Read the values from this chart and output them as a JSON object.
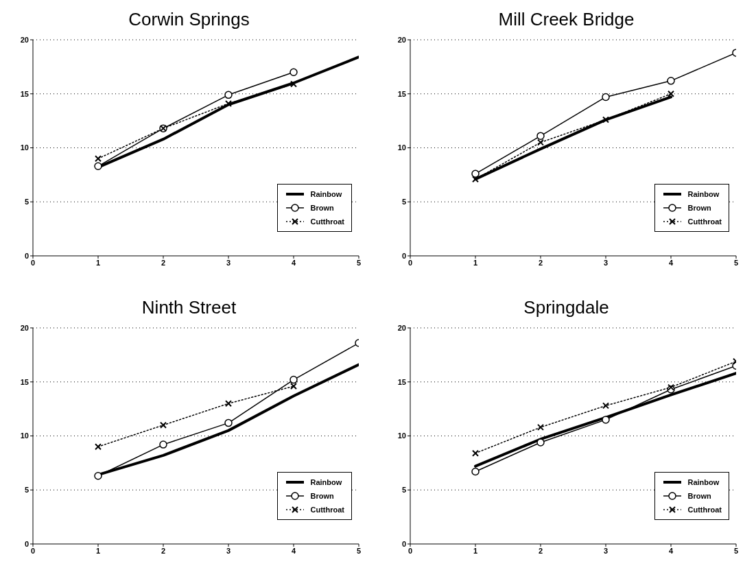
{
  "chart_data": [
    {
      "type": "line",
      "title": "Corwin Springs",
      "x": [
        1,
        2,
        3,
        4,
        5
      ],
      "xlim": [
        0,
        5
      ],
      "xticks": [
        0,
        1,
        2,
        3,
        4,
        5
      ],
      "ylim": [
        0,
        20
      ],
      "yticks": [
        0,
        5,
        10,
        15,
        20
      ],
      "grid": "y",
      "legend": "bottom right",
      "series": [
        {
          "name": "Rainbow",
          "color": "#000000",
          "line_style": "solid",
          "values": [
            8.2,
            10.8,
            14.0,
            16.0,
            18.4
          ]
        },
        {
          "name": "Brown",
          "color": "#000000",
          "marker": "circle",
          "line_style": "solid",
          "values": [
            8.3,
            11.8,
            14.9,
            17.0,
            null
          ]
        },
        {
          "name": "Cutthroat",
          "color": "#000000",
          "marker": "cross",
          "line_style": "dotted",
          "values": [
            9.0,
            11.8,
            14.1,
            15.9,
            null
          ]
        }
      ]
    },
    {
      "type": "line",
      "title": "Mill Creek Bridge",
      "x": [
        1,
        2,
        3,
        4,
        5
      ],
      "xlim": [
        0,
        5
      ],
      "xticks": [
        0,
        1,
        2,
        3,
        4,
        5
      ],
      "ylim": [
        0,
        20
      ],
      "yticks": [
        0,
        5,
        10,
        15,
        20
      ],
      "grid": "y",
      "legend": "bottom right",
      "series": [
        {
          "name": "Rainbow",
          "color": "#000000",
          "line_style": "solid",
          "values": [
            7.1,
            9.9,
            12.6,
            14.7,
            null
          ]
        },
        {
          "name": "Brown",
          "color": "#000000",
          "marker": "circle",
          "line_style": "solid",
          "values": [
            7.6,
            11.1,
            14.7,
            16.2,
            18.8
          ]
        },
        {
          "name": "Cutthroat",
          "color": "#000000",
          "marker": "cross",
          "line_style": "dotted",
          "values": [
            7.1,
            10.5,
            12.6,
            15.0,
            null
          ]
        }
      ]
    },
    {
      "type": "line",
      "title": "Ninth Street",
      "x": [
        1,
        2,
        3,
        4,
        5
      ],
      "xlim": [
        0,
        5
      ],
      "xticks": [
        0,
        1,
        2,
        3,
        4,
        5
      ],
      "ylim": [
        0,
        20
      ],
      "yticks": [
        0,
        5,
        10,
        15,
        20
      ],
      "grid": "y",
      "legend": "bottom right",
      "series": [
        {
          "name": "Rainbow",
          "color": "#000000",
          "line_style": "solid",
          "values": [
            6.4,
            8.2,
            10.5,
            13.7,
            16.6
          ]
        },
        {
          "name": "Brown",
          "color": "#000000",
          "marker": "circle",
          "line_style": "solid",
          "values": [
            6.3,
            9.2,
            11.2,
            15.2,
            18.6
          ]
        },
        {
          "name": "Cutthroat",
          "color": "#000000",
          "marker": "cross",
          "line_style": "dotted",
          "values": [
            9.0,
            11.0,
            13.0,
            14.6,
            null
          ]
        }
      ]
    },
    {
      "type": "line",
      "title": "Springdale",
      "x": [
        1,
        2,
        3,
        4,
        5
      ],
      "xlim": [
        0,
        5
      ],
      "xticks": [
        0,
        1,
        2,
        3,
        4,
        5
      ],
      "ylim": [
        0,
        20
      ],
      "yticks": [
        0,
        5,
        10,
        15,
        20
      ],
      "grid": "y",
      "legend": "bottom right",
      "series": [
        {
          "name": "Rainbow",
          "color": "#000000",
          "line_style": "solid",
          "values": [
            7.2,
            9.7,
            11.7,
            13.8,
            15.8
          ]
        },
        {
          "name": "Brown",
          "color": "#000000",
          "marker": "circle",
          "line_style": "solid",
          "values": [
            6.7,
            9.4,
            11.5,
            14.3,
            16.5
          ]
        },
        {
          "name": "Cutthroat",
          "color": "#000000",
          "marker": "cross",
          "line_style": "dotted",
          "values": [
            8.4,
            10.8,
            12.8,
            14.5,
            16.9
          ]
        }
      ]
    }
  ]
}
